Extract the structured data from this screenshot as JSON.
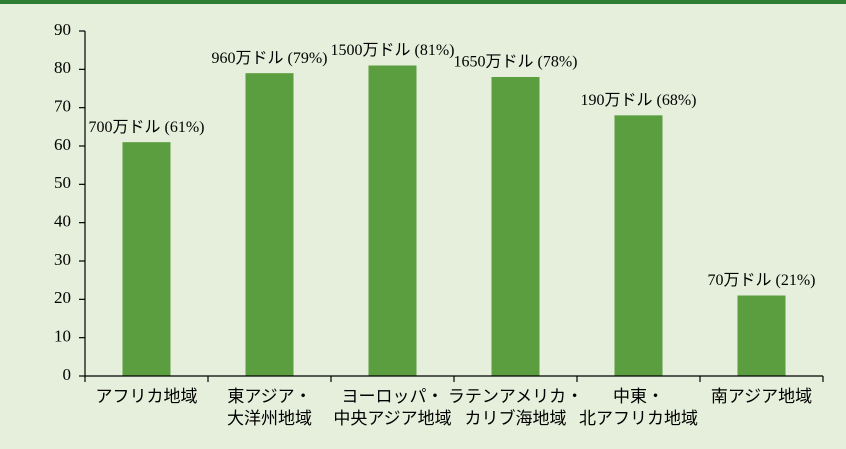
{
  "chart_data": {
    "type": "bar",
    "categories": [
      [
        "アフリカ地域"
      ],
      [
        "東アジア・",
        "大洋州地域"
      ],
      [
        "ヨーロッパ・",
        "中央アジア地域"
      ],
      [
        "ラテンアメリカ・",
        "カリブ海地域"
      ],
      [
        "中東・",
        "北アフリカ地域"
      ],
      [
        "南アジア地域"
      ]
    ],
    "values": [
      61,
      79,
      81,
      78,
      68,
      21
    ],
    "value_labels": [
      "700万ドル (61%)",
      "960万ドル (79%)",
      "1500万ドル (81%)",
      "1650万ドル (78%)",
      "190万ドル (68%)",
      "70万ドル (21%)"
    ],
    "color": "#5b9e3f",
    "ylim": [
      0,
      90
    ],
    "yticks": [
      0,
      10,
      20,
      30,
      40,
      50,
      60,
      70,
      80,
      90
    ],
    "grid": false
  }
}
